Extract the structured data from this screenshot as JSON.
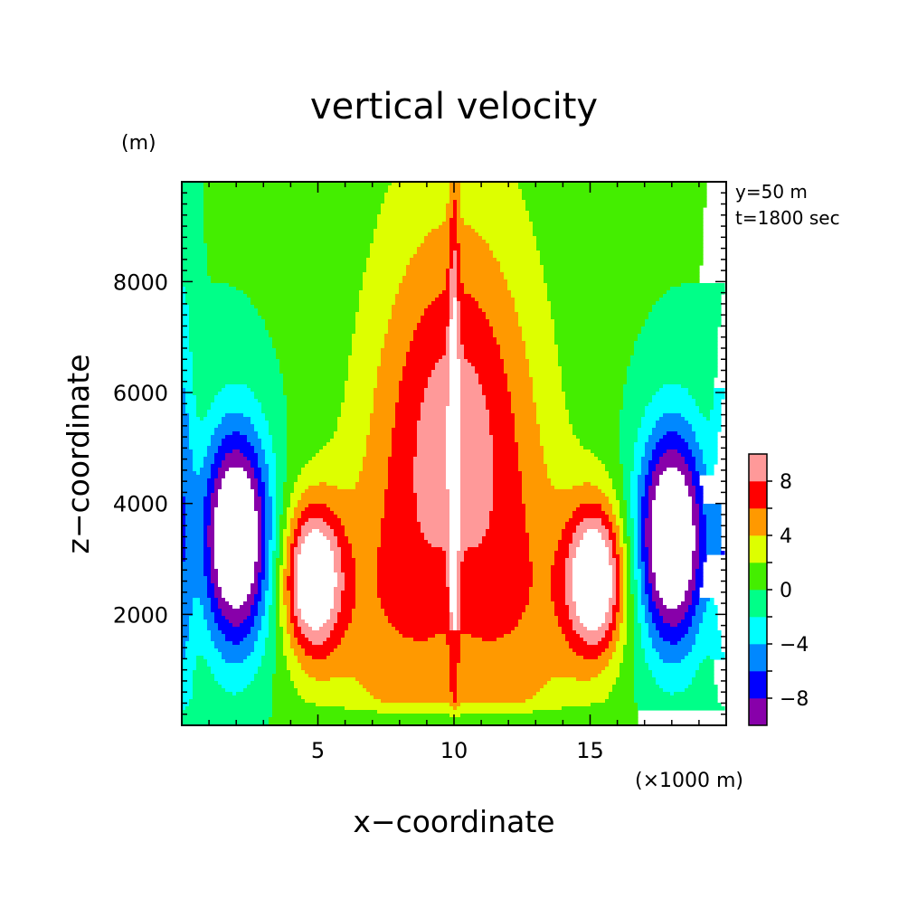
{
  "chart_data": {
    "type": "heatmap",
    "title": "vertical velocity",
    "xlabel": "x−coordinate",
    "ylabel": "z−coordinate",
    "x_unit": "(×1000 m)",
    "y_unit": "(m)",
    "annotations": [
      "y=50 m",
      "t=1800 sec"
    ],
    "xlim": [
      0,
      20
    ],
    "ylim": [
      0,
      9800
    ],
    "x_ticks": [
      5,
      10,
      15
    ],
    "x_tick_labels": [
      "5",
      "10",
      "15"
    ],
    "y_ticks": [
      2000,
      4000,
      6000,
      8000
    ],
    "y_tick_labels": [
      "2000",
      "4000",
      "6000",
      "8000"
    ],
    "colorbar": {
      "levels": [
        -10,
        -8,
        -6,
        -4,
        -2,
        0,
        2,
        4,
        6,
        8,
        10
      ],
      "tick_values": [
        -8,
        -4,
        0,
        4,
        8
      ],
      "tick_labels": [
        "−8",
        "−4",
        "0",
        "4",
        "8"
      ],
      "colors": [
        "#8800aa",
        "#0000ff",
        "#0088ff",
        "#00ffff",
        "#00ff88",
        "#44ee00",
        "#ddff00",
        "#ff9900",
        "#ff0000",
        "#ff9999"
      ]
    },
    "over_range_color": "#ffffff",
    "grid": false,
    "symmetry": "mirror about x=10",
    "features": [
      {
        "name": "central updraft core",
        "x": 10,
        "z_range": [
          3400,
          9800
        ],
        "sign": "positive"
      },
      {
        "name": "flank updrafts",
        "x": [
          5,
          15
        ],
        "z_range": [
          1700,
          3500
        ],
        "sign": "positive"
      },
      {
        "name": "downdraft cells",
        "x": [
          1.5,
          18.5
        ],
        "z_range": [
          1500,
          5100
        ],
        "sign": "negative"
      }
    ]
  }
}
